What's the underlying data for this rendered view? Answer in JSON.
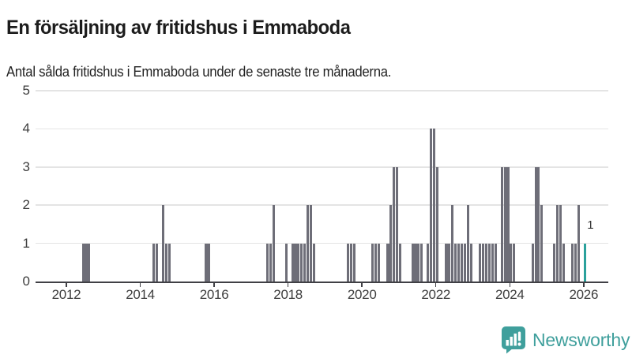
{
  "title": "En försäljning av fritidshus i Emmaboda",
  "subtitle": "Antal sålda fritidshus i Emmaboda under de senaste tre månaderna.",
  "logo": {
    "text": "Newsworthy"
  },
  "colors": {
    "bar": "#6e6e78",
    "highlight": "#2ba19c",
    "grid": "#e4e4e4",
    "axis": "#404045",
    "tick_text": "#3d3d3d",
    "title_text": "#1c1c1c",
    "logo_teal": "#3f9f9c"
  },
  "chart_data": {
    "type": "bar",
    "title": "En försäljning av fritidshus i Emmaboda",
    "subtitle": "Antal sålda fritidshus i Emmaboda under de senaste tre månaderna.",
    "xlabel": "",
    "ylabel": "",
    "ylim": [
      0,
      5
    ],
    "yticks": [
      0,
      1,
      2,
      3,
      4,
      5
    ],
    "xticks": [
      2012,
      2014,
      2016,
      2018,
      2020,
      2022,
      2024,
      2026
    ],
    "x_domain": [
      "2011-03",
      "2026-09"
    ],
    "grid": "horizontal",
    "legend": "none",
    "annotation": {
      "month": "2026-01",
      "label": "1"
    },
    "series": [
      {
        "month": "2012-06",
        "value": 1
      },
      {
        "month": "2012-07",
        "value": 1
      },
      {
        "month": "2012-08",
        "value": 1
      },
      {
        "month": "2014-05",
        "value": 1
      },
      {
        "month": "2014-06",
        "value": 1
      },
      {
        "month": "2014-08",
        "value": 2
      },
      {
        "month": "2014-09",
        "value": 1
      },
      {
        "month": "2014-10",
        "value": 1
      },
      {
        "month": "2015-10",
        "value": 1
      },
      {
        "month": "2015-11",
        "value": 1
      },
      {
        "month": "2017-06",
        "value": 1
      },
      {
        "month": "2017-07",
        "value": 1
      },
      {
        "month": "2017-08",
        "value": 2
      },
      {
        "month": "2017-12",
        "value": 1
      },
      {
        "month": "2018-02",
        "value": 1
      },
      {
        "month": "2018-03",
        "value": 1
      },
      {
        "month": "2018-04",
        "value": 1
      },
      {
        "month": "2018-05",
        "value": 1
      },
      {
        "month": "2018-06",
        "value": 1
      },
      {
        "month": "2018-07",
        "value": 2
      },
      {
        "month": "2018-08",
        "value": 2
      },
      {
        "month": "2018-09",
        "value": 1
      },
      {
        "month": "2019-08",
        "value": 1
      },
      {
        "month": "2019-09",
        "value": 1
      },
      {
        "month": "2019-10",
        "value": 1
      },
      {
        "month": "2020-04",
        "value": 1
      },
      {
        "month": "2020-05",
        "value": 1
      },
      {
        "month": "2020-06",
        "value": 1
      },
      {
        "month": "2020-09",
        "value": 1
      },
      {
        "month": "2020-10",
        "value": 2
      },
      {
        "month": "2020-11",
        "value": 3
      },
      {
        "month": "2020-12",
        "value": 3
      },
      {
        "month": "2021-01",
        "value": 1
      },
      {
        "month": "2021-05",
        "value": 1
      },
      {
        "month": "2021-06",
        "value": 1
      },
      {
        "month": "2021-07",
        "value": 1
      },
      {
        "month": "2021-08",
        "value": 1
      },
      {
        "month": "2021-10",
        "value": 1
      },
      {
        "month": "2021-11",
        "value": 4
      },
      {
        "month": "2021-12",
        "value": 4
      },
      {
        "month": "2022-01",
        "value": 3
      },
      {
        "month": "2022-04",
        "value": 1
      },
      {
        "month": "2022-05",
        "value": 1
      },
      {
        "month": "2022-06",
        "value": 2
      },
      {
        "month": "2022-07",
        "value": 1
      },
      {
        "month": "2022-08",
        "value": 1
      },
      {
        "month": "2022-09",
        "value": 1
      },
      {
        "month": "2022-10",
        "value": 1
      },
      {
        "month": "2022-11",
        "value": 2
      },
      {
        "month": "2022-12",
        "value": 1
      },
      {
        "month": "2023-03",
        "value": 1
      },
      {
        "month": "2023-04",
        "value": 1
      },
      {
        "month": "2023-05",
        "value": 1
      },
      {
        "month": "2023-06",
        "value": 1
      },
      {
        "month": "2023-07",
        "value": 1
      },
      {
        "month": "2023-08",
        "value": 1
      },
      {
        "month": "2023-10",
        "value": 3
      },
      {
        "month": "2023-11",
        "value": 3
      },
      {
        "month": "2023-12",
        "value": 3
      },
      {
        "month": "2024-01",
        "value": 1
      },
      {
        "month": "2024-02",
        "value": 1
      },
      {
        "month": "2024-08",
        "value": 1
      },
      {
        "month": "2024-09",
        "value": 3
      },
      {
        "month": "2024-10",
        "value": 3
      },
      {
        "month": "2024-11",
        "value": 2
      },
      {
        "month": "2025-03",
        "value": 1
      },
      {
        "month": "2025-04",
        "value": 2
      },
      {
        "month": "2025-05",
        "value": 2
      },
      {
        "month": "2025-06",
        "value": 1
      },
      {
        "month": "2025-09",
        "value": 1
      },
      {
        "month": "2025-10",
        "value": 1
      },
      {
        "month": "2025-11",
        "value": 2
      },
      {
        "month": "2026-01",
        "value": 1,
        "highlight": true
      }
    ]
  }
}
